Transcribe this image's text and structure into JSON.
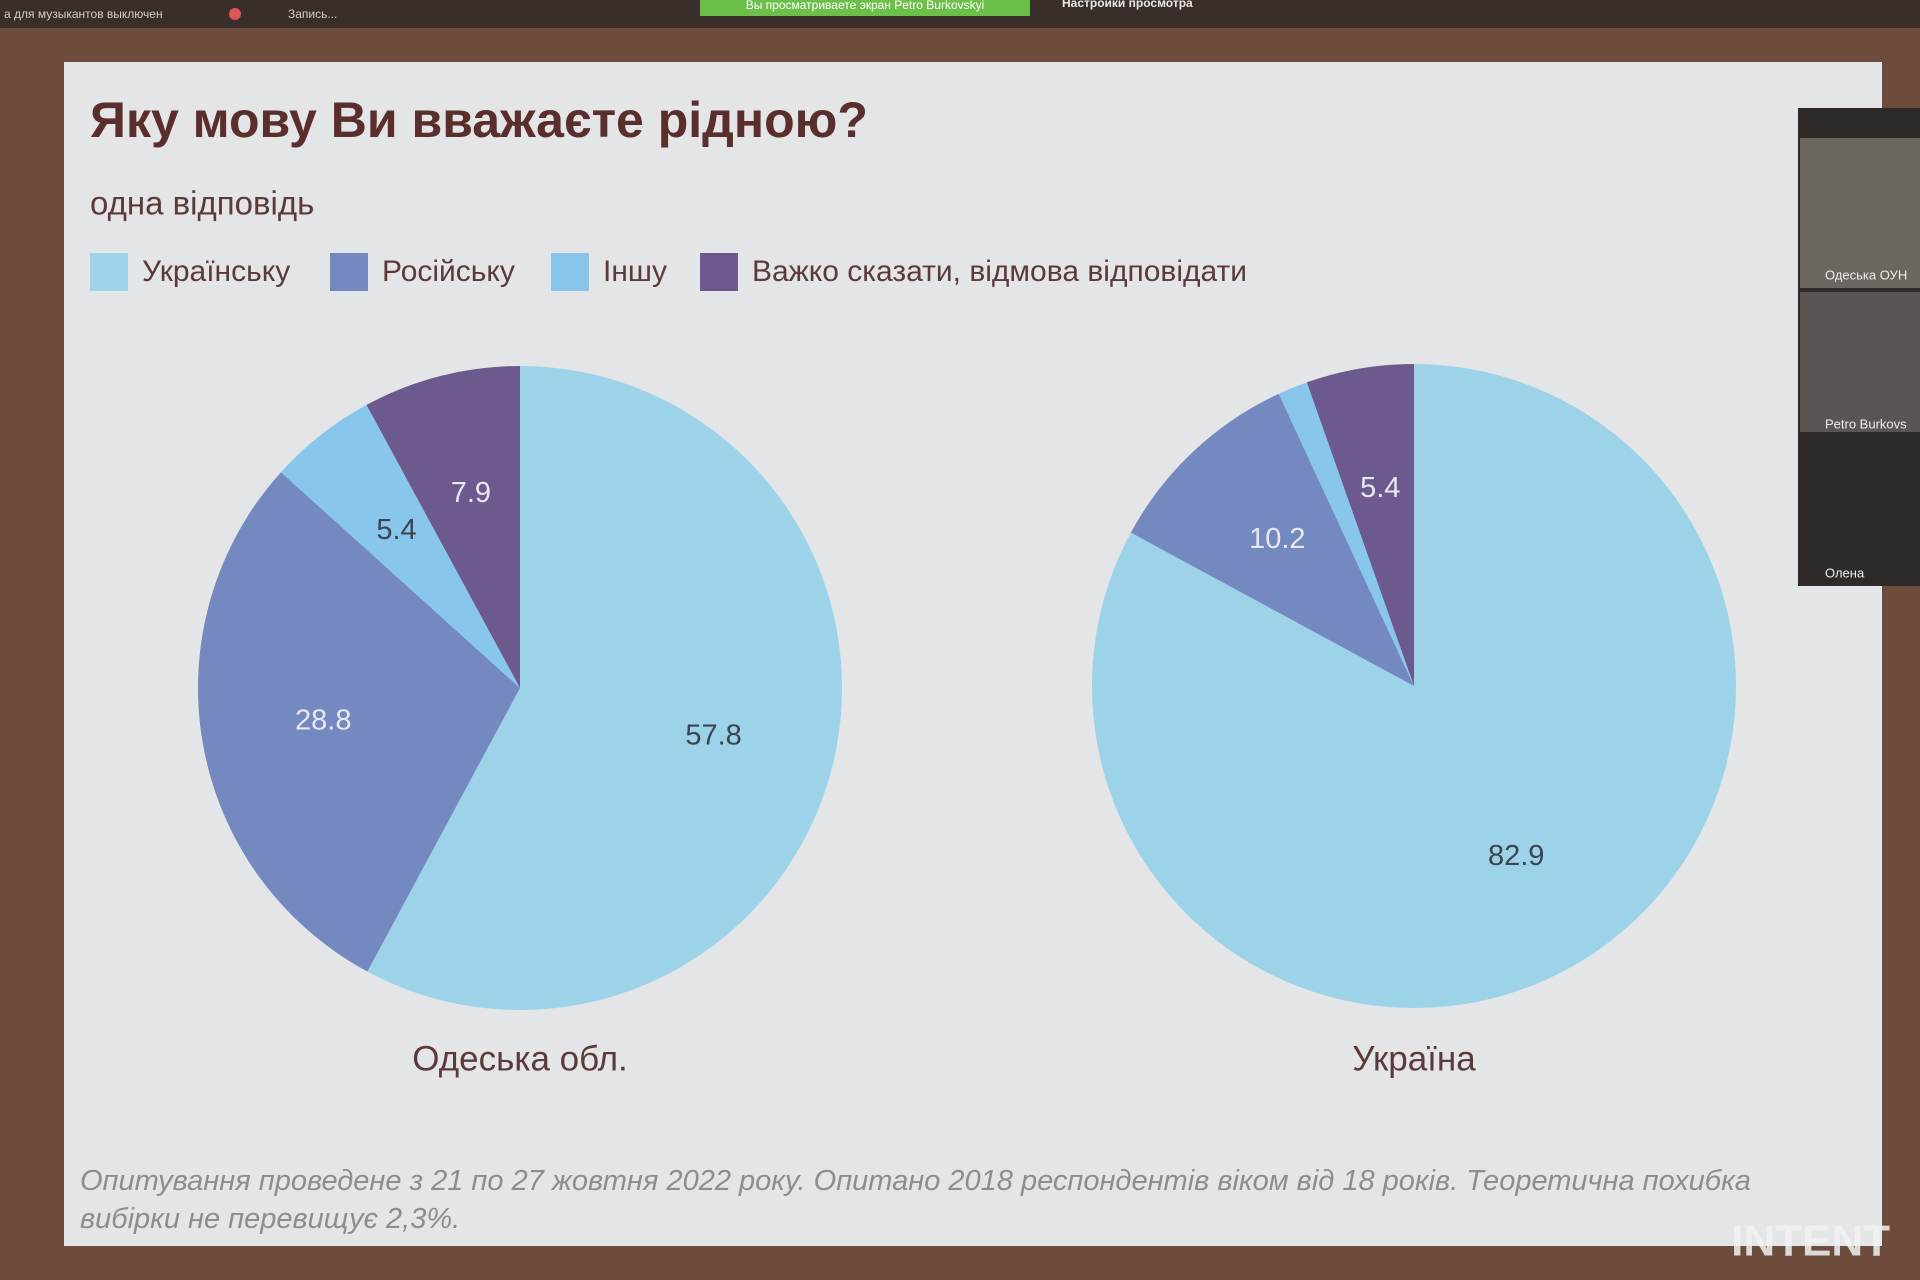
{
  "zoom": {
    "notice": "а для музыкантов выключен",
    "recording": "Запись...",
    "share_banner": "Вы просматриваете экран Petro Burkovskyi",
    "view_options": "Настройки просмотра",
    "participants": [
      "Одеська ОУН",
      "Petro Burkovs",
      "Олена"
    ]
  },
  "watermark": "INTENT",
  "slide": {
    "title": "Яку мову Ви вважаєте рідною?",
    "subtitle": "одна відповідь",
    "legend": {
      "categories": [
        "Українську",
        "Російську",
        "Іншу",
        "Важко сказати, відмова відповідати"
      ],
      "colors": [
        "#9dd3e8",
        "#7389c0",
        "#88c6ec",
        "#6c5a8e"
      ]
    },
    "footnote": "Опитування проведене з 21 по 27 жовтня 2022 року. Опитано 2018 респондентів віком від 18 років. Теоретична похибка вибірки не перевищує 2,3%."
  },
  "chart_data": [
    {
      "type": "pie",
      "title": "Одеська обл.",
      "values": [
        57.8,
        28.8,
        5.4,
        7.9
      ]
    },
    {
      "type": "pie",
      "title": "Україна",
      "values": [
        82.9,
        10.2,
        1.5,
        5.4
      ],
      "value_labels": [
        "82.9",
        "10.2",
        null,
        "5.4"
      ]
    }
  ]
}
